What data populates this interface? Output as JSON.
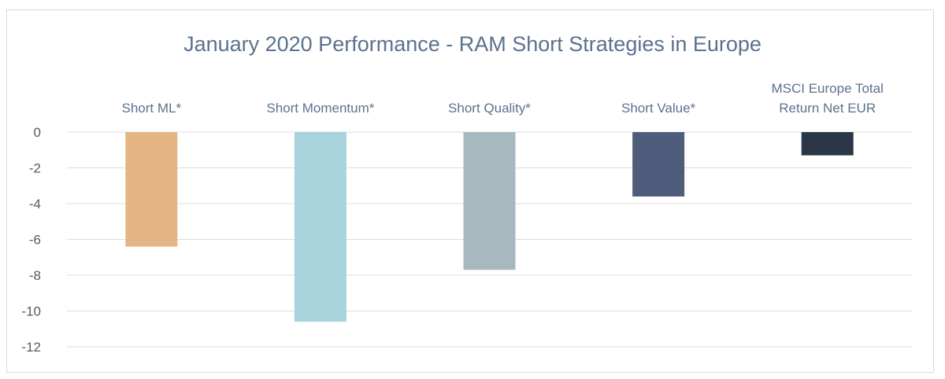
{
  "chart_data": {
    "type": "bar",
    "title": "January 2020 Performance  - RAM Short Strategies in Europe",
    "xlabel": "",
    "ylabel": "",
    "categories": [
      [
        "Short ML*"
      ],
      [
        "Short Momentum*"
      ],
      [
        "Short Quality*"
      ],
      [
        "Short Value*"
      ],
      [
        "MSCI Europe Total",
        "Return Net EUR"
      ]
    ],
    "values": [
      -6.4,
      -10.6,
      -7.7,
      -3.6,
      -1.3
    ],
    "colors": [
      "#e6b586",
      "#a8d3dc",
      "#a7b8bf",
      "#4f5d7c",
      "#2b3646"
    ],
    "ylim": [
      -12,
      0
    ],
    "yticks": [
      0,
      -2,
      -4,
      -6,
      -8,
      -10,
      -12
    ],
    "category_labels_position": "top",
    "grid": true,
    "legend": "none"
  }
}
